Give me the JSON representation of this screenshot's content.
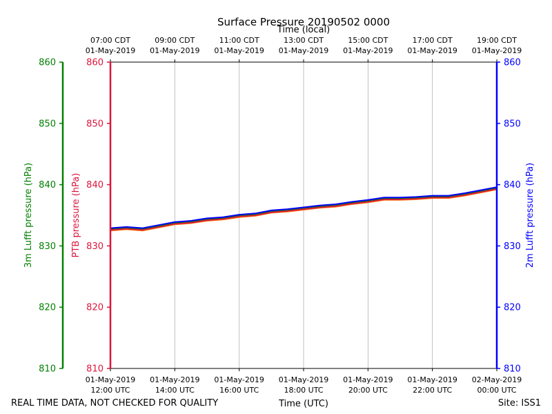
{
  "chart_data": {
    "type": "line",
    "title": "Surface Pressure 20190502 0000",
    "xlabel_bottom": "Time (UTC)",
    "xlabel_top": "Time (local)",
    "footer_left": "REAL TIME DATA, NOT CHECKED FOR QUALITY",
    "footer_right": "Site: ISS1",
    "x_hours_range": [
      0,
      12
    ],
    "ylim": [
      810,
      860
    ],
    "y_ticks": [
      810,
      820,
      830,
      840,
      850,
      860
    ],
    "axes": [
      {
        "id": "lufft3m",
        "label": "3m Lufft pressure (hPa)",
        "color": "#008000"
      },
      {
        "id": "ptb",
        "label": "PTB pressure (hPa)",
        "color": "#dc143c"
      },
      {
        "id": "lufft2m",
        "label": "2m Lufft pressure (hPa)",
        "color": "#0000ff"
      }
    ],
    "bottom_ticks": [
      {
        "hour": 0,
        "line1": "01-May-2019",
        "line2": "12:00 UTC"
      },
      {
        "hour": 2,
        "line1": "01-May-2019",
        "line2": "14:00 UTC"
      },
      {
        "hour": 4,
        "line1": "01-May-2019",
        "line2": "16:00 UTC"
      },
      {
        "hour": 6,
        "line1": "01-May-2019",
        "line2": "18:00 UTC"
      },
      {
        "hour": 8,
        "line1": "01-May-2019",
        "line2": "20:00 UTC"
      },
      {
        "hour": 10,
        "line1": "01-May-2019",
        "line2": "22:00 UTC"
      },
      {
        "hour": 12,
        "line1": "02-May-2019",
        "line2": "00:00 UTC"
      }
    ],
    "top_ticks": [
      {
        "hour": 0,
        "line1": "07:00 CDT",
        "line2": "01-May-2019"
      },
      {
        "hour": 2,
        "line1": "09:00 CDT",
        "line2": "01-May-2019"
      },
      {
        "hour": 4,
        "line1": "11:00 CDT",
        "line2": "01-May-2019"
      },
      {
        "hour": 6,
        "line1": "13:00 CDT",
        "line2": "01-May-2019"
      },
      {
        "hour": 8,
        "line1": "15:00 CDT",
        "line2": "01-May-2019"
      },
      {
        "hour": 10,
        "line1": "17:00 CDT",
        "line2": "01-May-2019"
      },
      {
        "hour": 12,
        "line1": "19:00 CDT",
        "line2": "01-May-2019"
      }
    ],
    "series": [
      {
        "name": "2m Lufft pressure",
        "color": "#0000ff",
        "x": [
          0,
          0.5,
          1,
          1.5,
          2,
          2.5,
          3,
          3.5,
          4,
          4.5,
          5,
          5.5,
          6,
          6.5,
          7,
          7.5,
          8,
          8.5,
          9,
          9.5,
          10,
          10.5,
          11,
          11.5,
          12
        ],
        "y": [
          832.9,
          833.1,
          832.9,
          833.4,
          833.9,
          834.1,
          834.5,
          834.7,
          835.1,
          835.3,
          835.8,
          836.0,
          836.3,
          836.6,
          836.8,
          837.2,
          837.5,
          837.9,
          837.9,
          838.0,
          838.2,
          838.2,
          838.6,
          839.1,
          839.6
        ]
      },
      {
        "name": "3m Lufft pressure",
        "color": "#008000",
        "x": [
          0,
          0.5,
          1,
          1.5,
          2,
          2.5,
          3,
          3.5,
          4,
          4.5,
          5,
          5.5,
          6,
          6.5,
          7,
          7.5,
          8,
          8.5,
          9,
          9.5,
          10,
          10.5,
          11,
          11.5,
          12
        ],
        "y": [
          832.8,
          833.0,
          832.8,
          833.3,
          833.8,
          834.0,
          834.4,
          834.6,
          835.0,
          835.2,
          835.7,
          835.9,
          836.2,
          836.5,
          836.7,
          837.1,
          837.4,
          837.8,
          837.8,
          837.9,
          838.1,
          838.1,
          838.5,
          839.0,
          839.5
        ]
      },
      {
        "name": "PTB pressure",
        "color": "#dc143c",
        "x": [
          0,
          0.5,
          1,
          1.5,
          2,
          2.5,
          3,
          3.5,
          4,
          4.5,
          5,
          5.5,
          6,
          6.5,
          7,
          7.5,
          8,
          8.5,
          9,
          9.5,
          10,
          10.5,
          11,
          11.5,
          12
        ],
        "y": [
          832.6,
          832.8,
          832.6,
          833.1,
          833.6,
          833.8,
          834.2,
          834.4,
          834.8,
          835.0,
          835.5,
          835.7,
          836.0,
          836.3,
          836.5,
          836.9,
          837.2,
          837.6,
          837.6,
          837.7,
          837.9,
          837.9,
          838.3,
          838.8,
          839.3
        ]
      },
      {
        "name": "Surface pressure (orange)",
        "color": "#ff7f0e",
        "x": [
          0,
          0.5,
          1,
          1.5,
          2,
          2.5,
          3,
          3.5,
          4,
          4.5,
          5,
          5.5,
          6,
          6.5,
          7,
          7.5,
          8,
          8.5,
          9,
          9.5,
          10,
          10.5,
          11,
          11.5,
          12
        ],
        "y": [
          832.5,
          832.7,
          832.5,
          833.0,
          833.5,
          833.7,
          834.1,
          834.3,
          834.7,
          834.9,
          835.4,
          835.6,
          835.9,
          836.2,
          836.4,
          836.8,
          837.1,
          837.5,
          837.5,
          837.6,
          837.8,
          837.8,
          838.2,
          838.7,
          839.2
        ]
      }
    ]
  }
}
